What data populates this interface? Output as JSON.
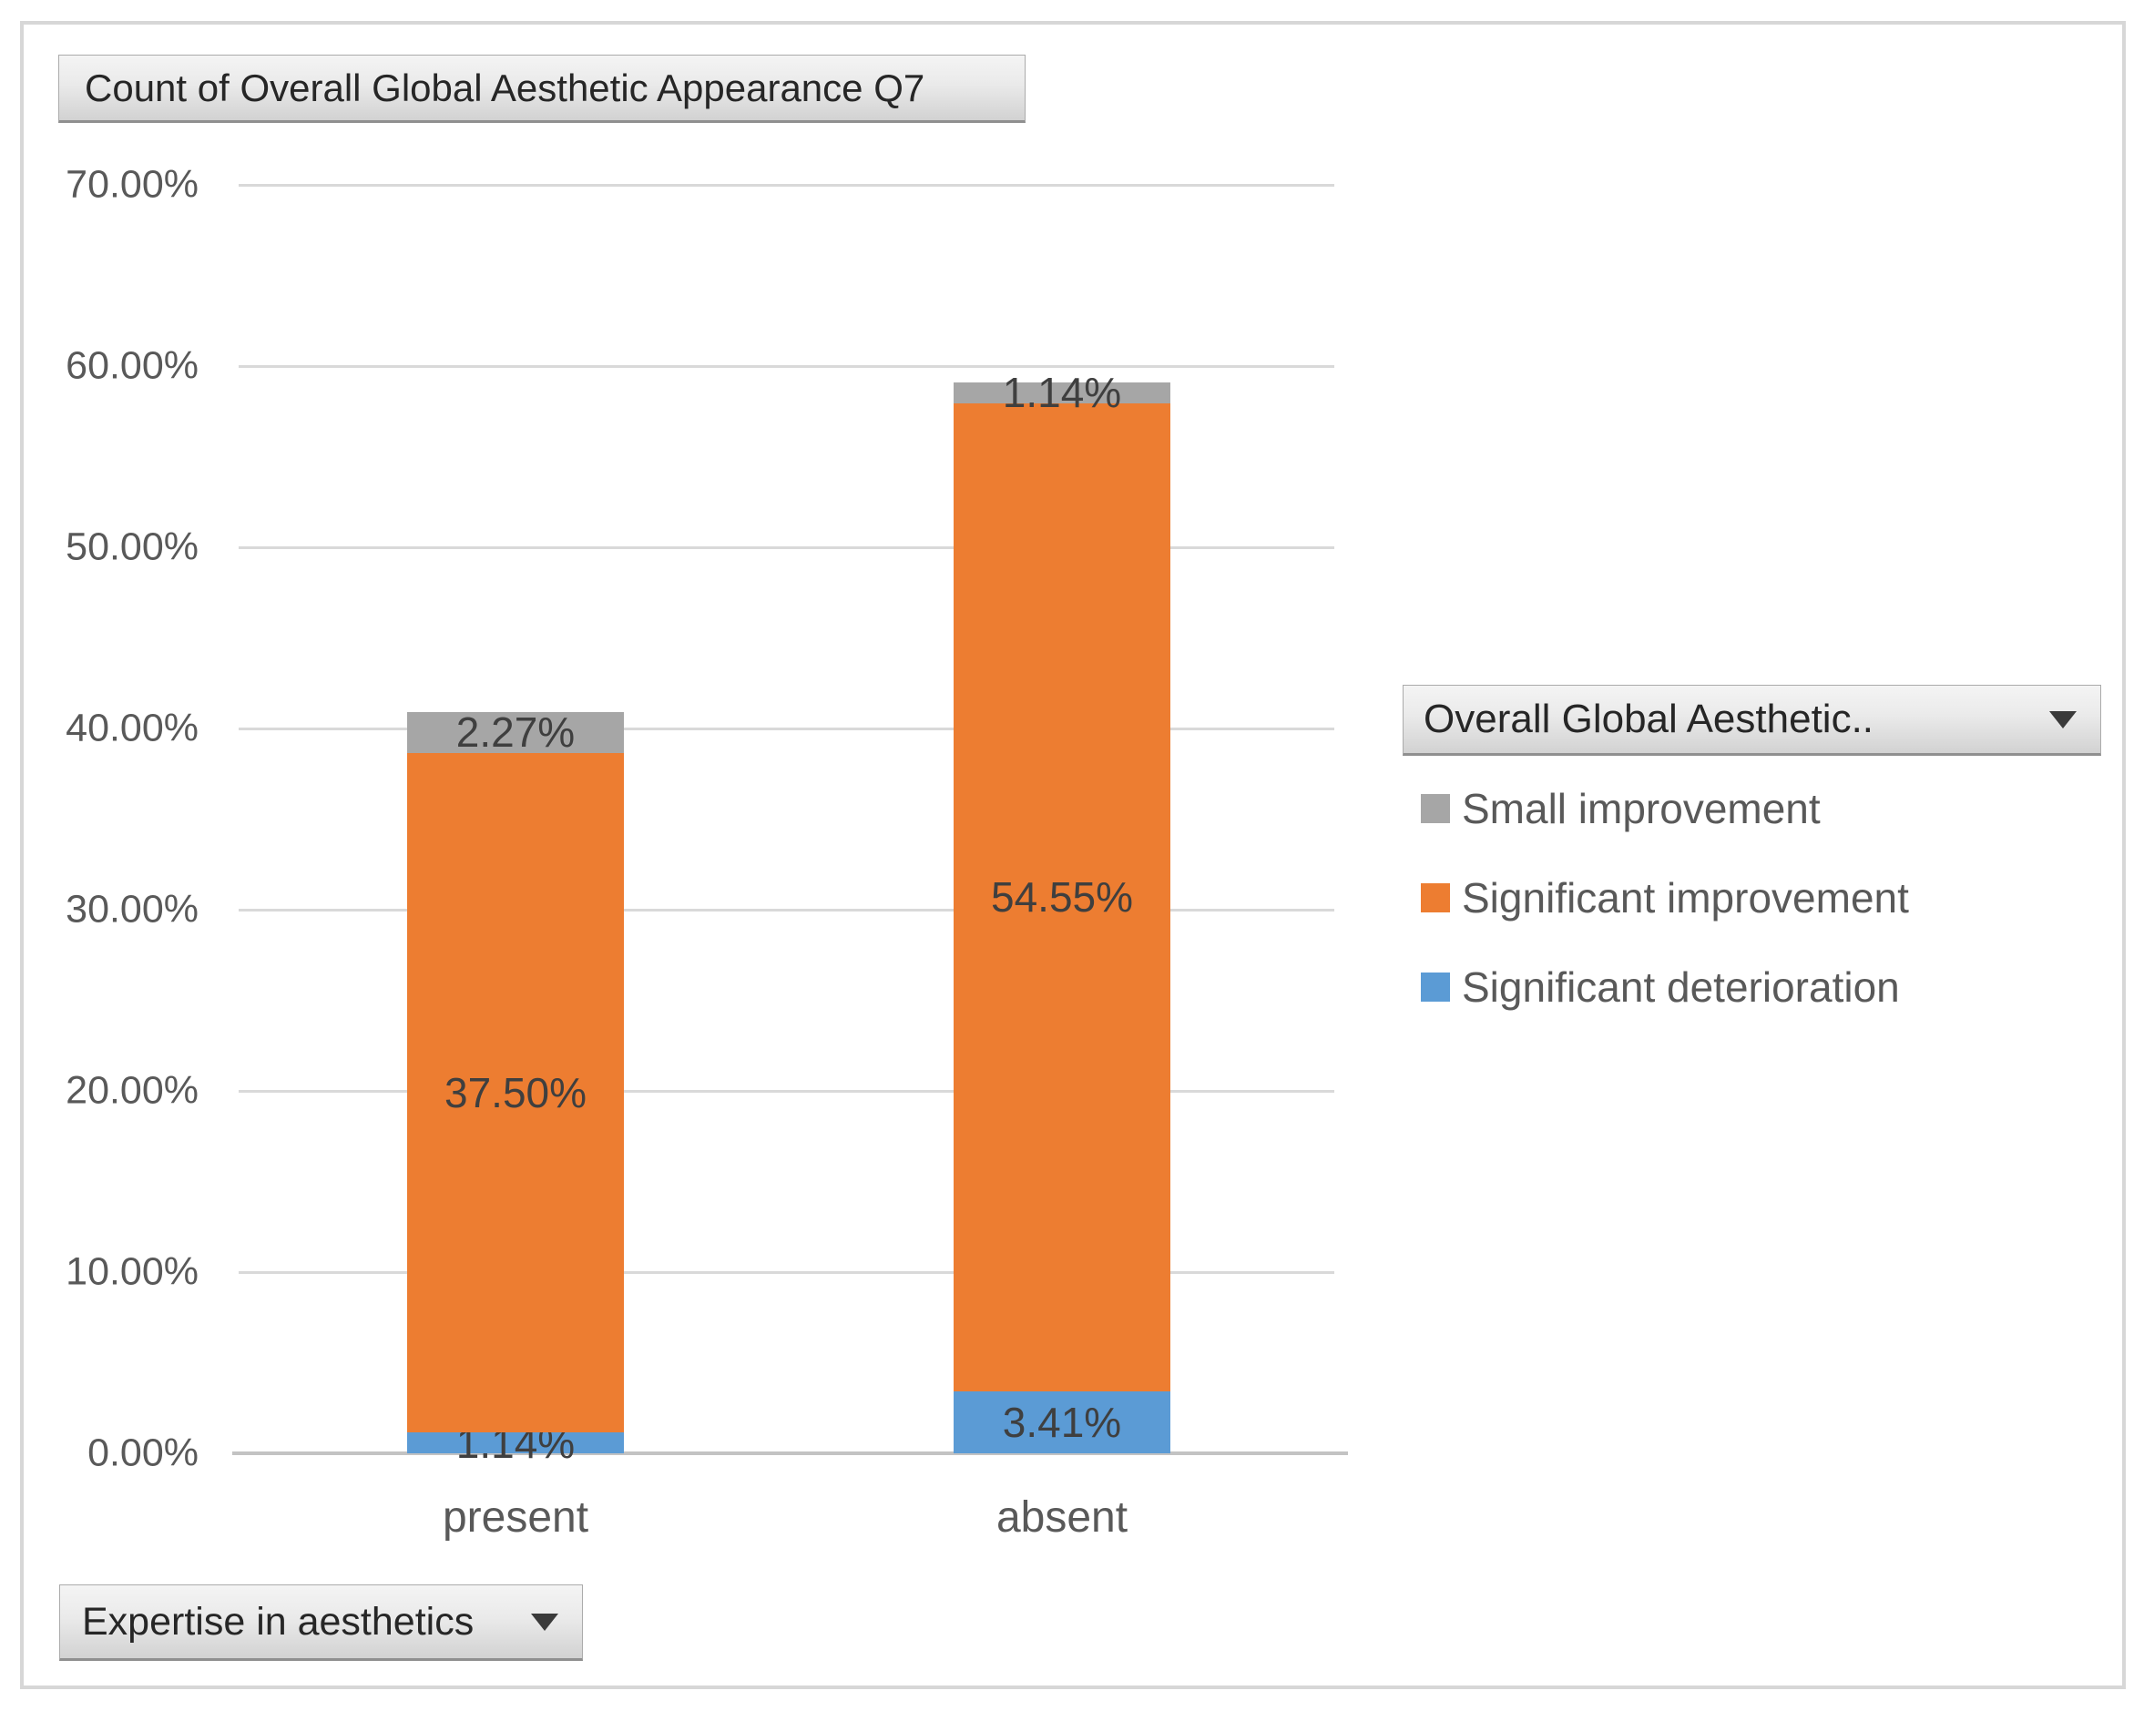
{
  "buttons": {
    "value_field": {
      "label": "Count of Overall Global Aesthetic Appearance Q7",
      "has_dropdown": false
    },
    "legend_field": {
      "label": "Overall Global Aesthetic..",
      "has_dropdown": true
    },
    "axis_field": {
      "label": "Expertise in aesthetics",
      "has_dropdown": true
    }
  },
  "chart_data": {
    "type": "bar",
    "stacked": true,
    "title": "Count of Overall Global Aesthetic Appearance Q7",
    "categories": [
      "present",
      "absent"
    ],
    "series": [
      {
        "name": "Significant deterioration",
        "color": "#5B9BD5",
        "values": [
          1.14,
          3.41
        ],
        "data_labels": [
          "1.14%",
          "3.41%"
        ]
      },
      {
        "name": "Significant improvement",
        "color": "#ED7D31",
        "values": [
          37.5,
          54.55
        ],
        "data_labels": [
          "37.50%",
          "54.55%"
        ]
      },
      {
        "name": "Small improvement",
        "color": "#A6A6A6",
        "values": [
          2.27,
          1.14
        ],
        "data_labels": [
          "2.27%",
          "1.14%"
        ]
      }
    ],
    "y_axis": {
      "min": 0,
      "max": 70,
      "step": 10,
      "tick_labels": [
        "0.00%",
        "10.00%",
        "20.00%",
        "30.00%",
        "40.00%",
        "50.00%",
        "60.00%",
        "70.00%"
      ]
    },
    "legend": {
      "position": "right",
      "items": [
        {
          "label": "Small improvement",
          "color": "#A6A6A6"
        },
        {
          "label": "Significant improvement",
          "color": "#ED7D31"
        },
        {
          "label": "Significant deterioration",
          "color": "#5B9BD5"
        }
      ]
    },
    "grid": true,
    "totals_pct": {
      "present": 40.91,
      "absent": 59.1
    }
  },
  "colors": {
    "gridline": "#D9D9D9",
    "axis_line": "#C3C3C3",
    "tick_text": "#595959",
    "data_label_text": "#3F3F3F",
    "category_text": "#595959",
    "legend_text": "#595959",
    "button_text": "#262626",
    "frame_border": "#D7D7D7"
  }
}
